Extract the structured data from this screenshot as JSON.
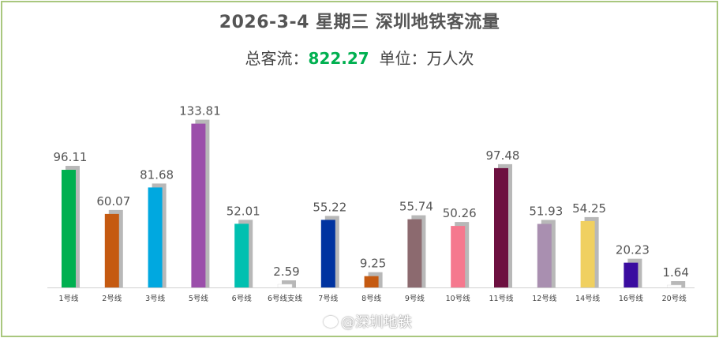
{
  "title": "2026-3-4 星期三  深圳地铁客流量",
  "subtitle": {
    "total_label": "总客流：",
    "total_value": "822.27",
    "unit_label": "单位：万人次"
  },
  "watermark": "@深圳地铁",
  "chart_data": {
    "type": "bar",
    "categories": [
      "1号线",
      "2号线",
      "3号线",
      "5号线",
      "6号线",
      "6号线支线",
      "7号线",
      "8号线",
      "9号线",
      "10号线",
      "11号线",
      "12号线",
      "14号线",
      "16号线",
      "20号线"
    ],
    "values": [
      96.11,
      60.07,
      81.68,
      133.81,
      52.01,
      2.59,
      55.22,
      9.25,
      55.74,
      50.26,
      97.48,
      51.93,
      54.25,
      20.23,
      1.64
    ],
    "labels": [
      "96.11",
      "60.07",
      "81.68",
      "133.81",
      "52.01",
      "2.59",
      "55.22",
      "9.25",
      "55.74",
      "50.26",
      "97.48",
      "51.93",
      "54.25",
      "20.23",
      "1.64"
    ],
    "colors": [
      "#00b050",
      "#c55a11",
      "#00a8e0",
      "#9b4faa",
      "#00c0b0",
      "#ffffff",
      "#0033a0",
      "#c55a11",
      "#8c6a6f",
      "#f5788e",
      "#6d1040",
      "#a98fb0",
      "#f0d060",
      "#3a0ca0",
      "#ffffff"
    ],
    "ylim": [
      0,
      150
    ],
    "legend": false,
    "grid": false
  }
}
